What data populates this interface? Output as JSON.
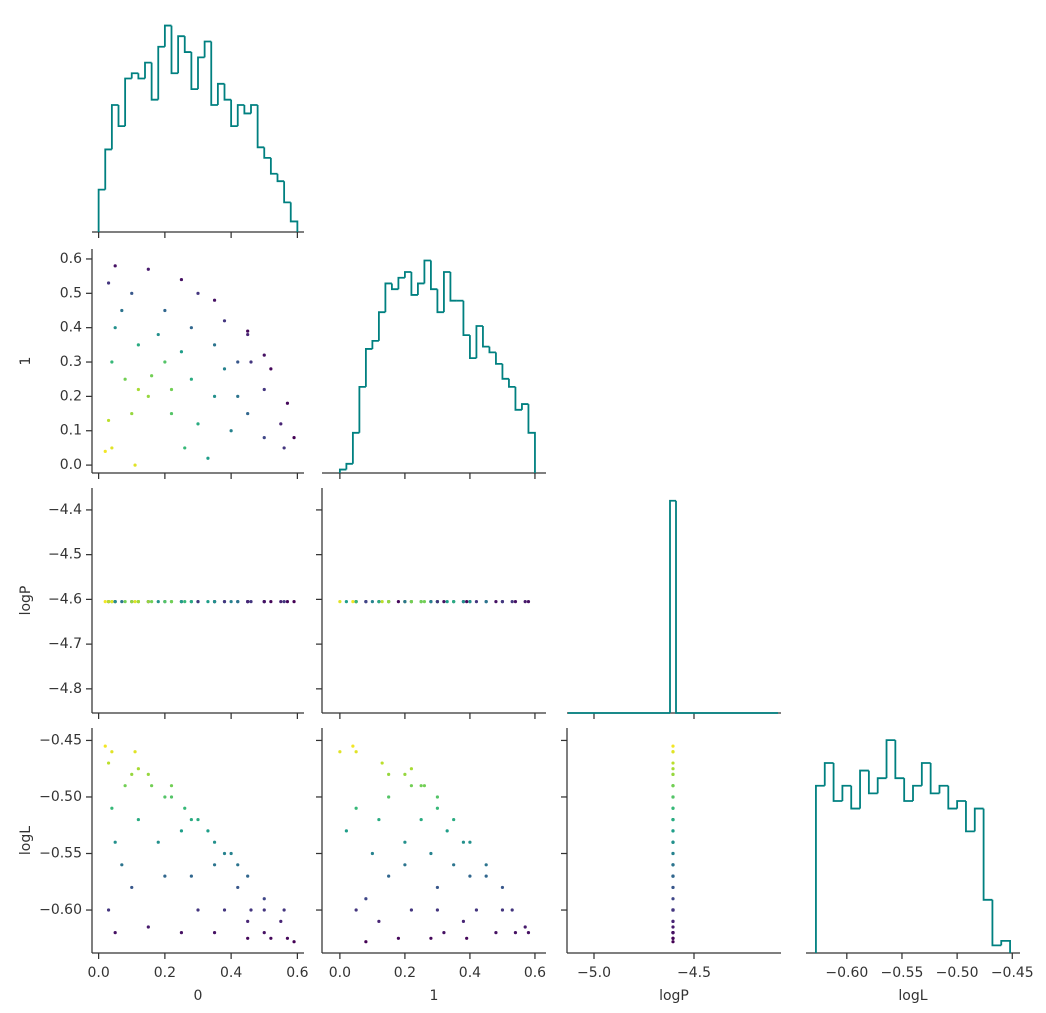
{
  "chart_data": {
    "type": "corner",
    "color": "#008080",
    "hue": "logL",
    "colormap": "viridis",
    "clim": [
      -0.628,
      -0.452
    ],
    "variables": [
      {
        "name": "0",
        "values": [
          0.05,
          0.15,
          0.25,
          0.35,
          0.45,
          0.52,
          0.57,
          0.59,
          0.55,
          0.5,
          0.42,
          0.35,
          0.28,
          0.2,
          0.1,
          0.03,
          0.05,
          0.12,
          0.2,
          0.28,
          0.35,
          0.45,
          0.5,
          0.4,
          0.3,
          0.22,
          0.15,
          0.12,
          0.08,
          0.04,
          0.02,
          0.04,
          0.11,
          0.03,
          0.33,
          0.45,
          0.38,
          0.25,
          0.18,
          0.56,
          0.3,
          0.42,
          0.16,
          0.1,
          0.22,
          0.5,
          0.07,
          0.38,
          0.46,
          0.26
        ],
        "xlim": [
          -0.02,
          0.62
        ],
        "xticks": [
          {
            "value": 0,
            "label": "0.0"
          },
          0.2,
          0.4,
          0.6
        ],
        "hist": {
          "bins": [
            0,
            0.02,
            0.04,
            0.06,
            0.08,
            0.1,
            0.12,
            0.14,
            0.16,
            0.18,
            0.2,
            0.22,
            0.24,
            0.26,
            0.28,
            0.3,
            0.32,
            0.34,
            0.36,
            0.38,
            0.4,
            0.42,
            0.44,
            0.46,
            0.48,
            0.5,
            0.52,
            0.54,
            0.56,
            0.58,
            0.6
          ],
          "counts": [
            40,
            78,
            120,
            100,
            145,
            150,
            145,
            160,
            125,
            175,
            195,
            150,
            185,
            170,
            135,
            165,
            180,
            120,
            140,
            125,
            100,
            120,
            112,
            120,
            80,
            70,
            55,
            48,
            28,
            10
          ],
          "ylim": [
            0,
            205
          ]
        }
      },
      {
        "name": "1",
        "values": [
          0.58,
          0.57,
          0.54,
          0.48,
          0.39,
          0.28,
          0.18,
          0.08,
          0.12,
          0.22,
          0.3,
          0.35,
          0.4,
          0.45,
          0.5,
          0.53,
          0.4,
          0.35,
          0.3,
          0.25,
          0.2,
          0.15,
          0.08,
          0.1,
          0.12,
          0.15,
          0.2,
          0.22,
          0.25,
          0.3,
          0.04,
          0.05,
          0.0,
          0.13,
          0.02,
          0.38,
          0.28,
          0.33,
          0.38,
          0.05,
          0.5,
          0.2,
          0.26,
          0.15,
          0.22,
          0.32,
          0.45,
          0.42,
          0.3,
          0.05
        ],
        "xlim": [
          -0.055,
          0.634
        ],
        "ylim": [
          -0.023,
          0.629
        ],
        "xticks": [
          {
            "value": 0,
            "label": "0.0"
          },
          0.2,
          0.4,
          0.6
        ],
        "yticks": [
          {
            "value": 0,
            "label": "0.0"
          },
          0.1,
          0.2,
          0.3,
          0.4,
          0.5,
          0.6
        ],
        "hist": {
          "bins": [
            0,
            0.02,
            0.04,
            0.06,
            0.08,
            0.1,
            0.12,
            0.14,
            0.16,
            0.18,
            0.2,
            0.22,
            0.24,
            0.26,
            0.28,
            0.3,
            0.32,
            0.34,
            0.36,
            0.38,
            0.4,
            0.42,
            0.44,
            0.46,
            0.48,
            0.5,
            0.52,
            0.54,
            0.56,
            0.58,
            0.6
          ],
          "counts": [
            3,
            8,
            35,
            75,
            108,
            115,
            140,
            165,
            160,
            170,
            175,
            155,
            165,
            185,
            160,
            140,
            175,
            150,
            150,
            120,
            100,
            128,
            110,
            105,
            95,
            82,
            75,
            55,
            60,
            35
          ],
          "ylim": [
            0,
            195
          ]
        }
      },
      {
        "name": "logP",
        "values": [
          -4.605,
          -4.605,
          -4.605,
          -4.605,
          -4.605,
          -4.605,
          -4.605,
          -4.605,
          -4.605,
          -4.605,
          -4.605,
          -4.605,
          -4.605,
          -4.605,
          -4.605,
          -4.605,
          -4.605,
          -4.605,
          -4.605,
          -4.605,
          -4.605,
          -4.605,
          -4.605,
          -4.605,
          -4.605,
          -4.605,
          -4.605,
          -4.605,
          -4.605,
          -4.605,
          -4.605,
          -4.605,
          -4.605,
          -4.605,
          -4.605,
          -4.605,
          -4.605,
          -4.605,
          -4.605,
          -4.605,
          -4.605,
          -4.605,
          -4.605,
          -4.605,
          -4.605,
          -4.605,
          -4.605,
          -4.605,
          -4.605,
          -4.605
        ],
        "xlim": [
          -5.135,
          -4.065
        ],
        "ylim": [
          -4.854,
          -4.351
        ],
        "xticks": [
          {
            "value": -5.0,
            "label": "−5.0"
          },
          {
            "value": -4.5,
            "label": "−4.5"
          }
        ],
        "yticks": [
          {
            "value": -4.4,
            "label": "−4.4"
          },
          {
            "value": -4.5,
            "label": "−4.5"
          },
          {
            "value": -4.6,
            "label": "−4.6"
          },
          {
            "value": -4.7,
            "label": "−4.7"
          },
          {
            "value": -4.8,
            "label": "−4.8"
          }
        ],
        "hist": {
          "bins": [
            -5.13,
            -4.62,
            -4.59,
            -4.08
          ],
          "counts": [
            0,
            2000,
            0
          ],
          "ylim": [
            0,
            2120
          ]
        }
      },
      {
        "name": "logL",
        "values": [
          -0.62,
          -0.615,
          -0.62,
          -0.62,
          -0.625,
          -0.625,
          -0.625,
          -0.628,
          -0.61,
          -0.6,
          -0.58,
          -0.56,
          -0.57,
          -0.57,
          -0.58,
          -0.6,
          -0.54,
          -0.52,
          -0.5,
          -0.52,
          -0.54,
          -0.57,
          -0.59,
          -0.55,
          -0.52,
          -0.5,
          -0.48,
          -0.475,
          -0.49,
          -0.51,
          -0.455,
          -0.46,
          -0.46,
          -0.47,
          -0.53,
          -0.61,
          -0.55,
          -0.53,
          -0.54,
          -0.6,
          -0.6,
          -0.56,
          -0.49,
          -0.48,
          -0.49,
          -0.62,
          -0.56,
          -0.6,
          -0.6,
          -0.51
        ],
        "xlim": [
          -0.637,
          -0.443
        ],
        "ylim": [
          -0.638,
          -0.439
        ],
        "xticks": [
          {
            "value": -0.6,
            "label": "−0.60"
          },
          {
            "value": -0.55,
            "label": "−0.55"
          },
          {
            "value": -0.5,
            "label": "−0.50"
          },
          {
            "value": -0.45,
            "label": "−0.45"
          }
        ],
        "yticks": [
          {
            "value": -0.45,
            "label": "−0.45"
          },
          {
            "value": -0.5,
            "label": "−0.50"
          },
          {
            "value": -0.55,
            "label": "−0.55"
          },
          {
            "value": -0.6,
            "label": "−0.60"
          }
        ],
        "hist": {
          "bins": [
            -0.628,
            -0.62,
            -0.612,
            -0.604,
            -0.596,
            -0.588,
            -0.58,
            -0.572,
            -0.564,
            -0.556,
            -0.548,
            -0.54,
            -0.532,
            -0.524,
            -0.516,
            -0.508,
            -0.5,
            -0.492,
            -0.484,
            -0.476,
            -0.468,
            -0.46,
            -0.452
          ],
          "counts": [
            110,
            125,
            100,
            110,
            95,
            120,
            105,
            115,
            140,
            115,
            100,
            110,
            125,
            105,
            110,
            95,
            100,
            80,
            95,
            35,
            5,
            8
          ],
          "ylim": [
            0,
            148
          ]
        }
      }
    ]
  }
}
